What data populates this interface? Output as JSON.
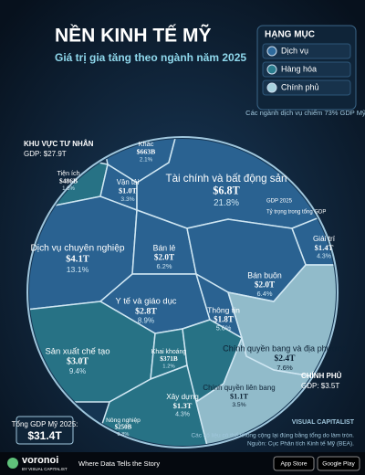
{
  "chart_data": {
    "type": "voronoi",
    "title": "NỀN KINH TẾ MỸ",
    "subtitle": "Giá trị gia tăng theo ngành năm 2025",
    "legend_title": "HẠNG MỤC",
    "groups": [
      {
        "name": "Dịch vụ",
        "color": "#2e6a9c"
      },
      {
        "name": "Hàng hóa",
        "color": "#2a7d8e"
      },
      {
        "name": "Chính phủ",
        "color": "#a7d2df"
      }
    ],
    "legend_note": "Các ngành dịch vụ chiếm 73% GDP Mỹ.",
    "private_label": "KHU VỰC TƯ NHÂN",
    "private_gdp": "GDP: $27.9T",
    "government_label": "CHÍNH PHỦ",
    "government_gdp": "GDP: $3.5T",
    "total_label": "Tổng GDP Mỹ 2025:",
    "total_value": "$31.4T",
    "annotations": [
      "GDP 2025",
      "Tỷ trọng trong tổng GDP"
    ],
    "categories": [
      "Khác",
      "Tiện ích",
      "Vận tải",
      "Tài chính và bất động sản",
      "Giải trí",
      "Dịch vụ chuyên nghiệp",
      "Bán lẻ",
      "Bán buôn",
      "Y tế và giáo dục",
      "Thông tin",
      "Chính quyền bang và địa phương",
      "Sản xuất chế tạo",
      "Khai khoáng",
      "Xây dựng",
      "Nông nghiệp",
      "Chính quyền liên bang"
    ],
    "values": [
      2.1,
      1.6,
      3.3,
      21.8,
      4.3,
      13.1,
      6.2,
      6.4,
      8.9,
      5.6,
      7.6,
      9.4,
      1.2,
      4.3,
      0.8,
      3.5
    ],
    "value_labels": [
      "2.1%",
      "1.6%",
      "3.3%",
      "21.8%",
      "4.3%",
      "13.1%",
      "6.2%",
      "6.4%",
      "8.9%",
      "5.6%",
      "7.6%",
      "9.4%",
      "1.2%",
      "4.3%",
      "0.8%",
      "3.5%"
    ],
    "amounts": [
      663,
      486,
      1000,
      6800,
      1400,
      4100,
      2000,
      2000,
      2800,
      1800,
      2400,
      3000,
      371,
      1300,
      250,
      1100
    ],
    "amount_labels": [
      "$663B",
      "$486B",
      "$1.0T",
      "$6.8T",
      "$1.4T",
      "$4.1T",
      "$2.0T",
      "$2.0T",
      "$2.8T",
      "$1.8T",
      "$2.4T",
      "$3.0T",
      "$371B",
      "$1.3T",
      "$250B",
      "$1.1T"
    ],
    "group_index": [
      0,
      1,
      0,
      0,
      0,
      0,
      0,
      0,
      0,
      0,
      2,
      1,
      1,
      1,
      1,
      2
    ],
    "footnote": "Các số liệu có thể không cộng lại đúng bằng tổng do làm tròn.",
    "source": "Nguồn: Cục Phân tích Kinh tế Mỹ (BEA).",
    "publisher": "VISUAL CAPITALIST",
    "brand": "voronoi",
    "brand_sub": "BY VISUAL CAPITALIST",
    "tagline": "Where Data Tells the Story",
    "stores": [
      "App Store",
      "Google Play"
    ]
  }
}
